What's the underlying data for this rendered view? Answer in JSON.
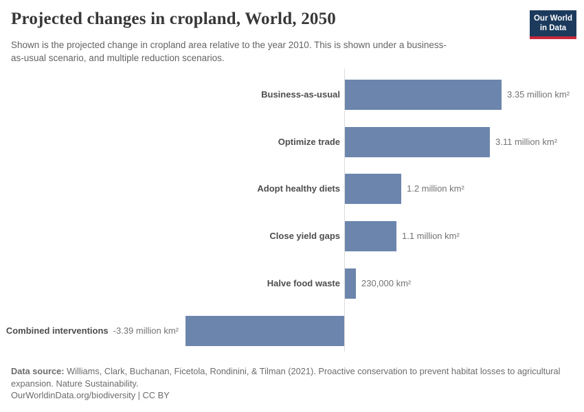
{
  "header": {
    "title": "Projected changes in cropland, World, 2050",
    "subtitle": "Shown is the projected change in cropland area relative to the year 2010. This is shown under a business-as-usual scenario, and multiple reduction scenarios.",
    "logo": {
      "line1": "Our World",
      "line2": "in Data"
    }
  },
  "chart_data": {
    "type": "bar",
    "orientation": "horizontal",
    "title": "Projected changes in cropland, World, 2050",
    "categories": [
      "Business-as-usual",
      "Optimize trade",
      "Adopt healthy diets",
      "Close yield gaps",
      "Halve food waste",
      "Combined interventions"
    ],
    "values": [
      3.35,
      3.11,
      1.2,
      1.1,
      0.23,
      -3.39
    ],
    "unit": "million km²",
    "value_labels": [
      "3.35 million km²",
      "3.11 million km²",
      "1.2 million km²",
      "1.1 million km²",
      "230,000 km²",
      "-3.39 million km²"
    ],
    "baseline": 0,
    "xlim": [
      -3.45,
      3.45
    ],
    "grid": false,
    "legend": "none",
    "bar_color": "#6c85ad"
  },
  "footer": {
    "source_label": "Data source:",
    "source_text": " Williams, Clark, Buchanan, Ficetola, Rondinini, & Tilman (2021). Proactive conservation to prevent habitat losses to agricultural expansion. Nature Sustainability.",
    "url": "OurWorldinData.org/biodiversity",
    "license_suffix": " | CC BY"
  },
  "colors": {
    "bar": "#6c85ad",
    "axis": "#dcdcdc",
    "title": "#373737",
    "subtitle": "#636363",
    "category_label": "#4d4d4d",
    "value_label": "#737373",
    "footer": "#6b6b6b",
    "logo_bg": "#1b3a5c",
    "logo_accent": "#c8283c"
  }
}
